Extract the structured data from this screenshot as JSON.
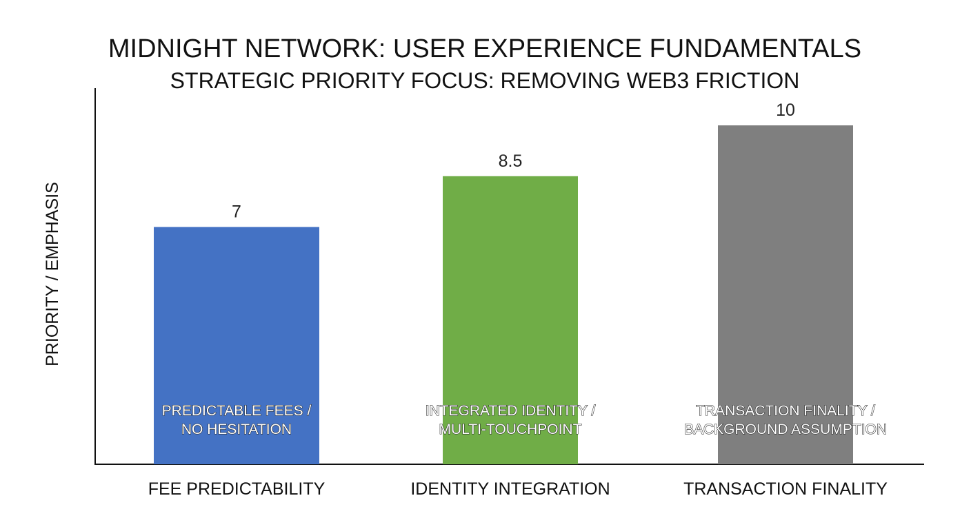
{
  "chart_data": {
    "type": "bar",
    "title": "MIDNIGHT NETWORK: USER EXPERIENCE FUNDAMENTALS",
    "subtitle": "STRATEGIC PRIORITY FOCUS: REMOVING WEB3 FRICTION",
    "xlabel": "",
    "ylabel": "PRIORITY / EMPHASIS",
    "ylim": [
      0,
      11
    ],
    "grid": false,
    "legend": "none",
    "categories": [
      "FEE PREDICTABILITY",
      "IDENTITY INTEGRATION",
      "TRANSACTION FINALITY"
    ],
    "values": [
      7,
      8.5,
      10
    ],
    "value_labels": [
      "7",
      "8.5",
      "10"
    ],
    "bar_annotations": [
      [
        "PREDICTABLE FEES /",
        "NO HESITATION"
      ],
      [
        "INTEGRATED IDENTITY /",
        "MULTI-TOUCHPOINT"
      ],
      [
        "TRANSACTION FINALITY /",
        "BACKGROUND ASSUMPTION"
      ]
    ],
    "colors": [
      "#4472c4",
      "#70ad47",
      "#7f7f7f"
    ]
  }
}
